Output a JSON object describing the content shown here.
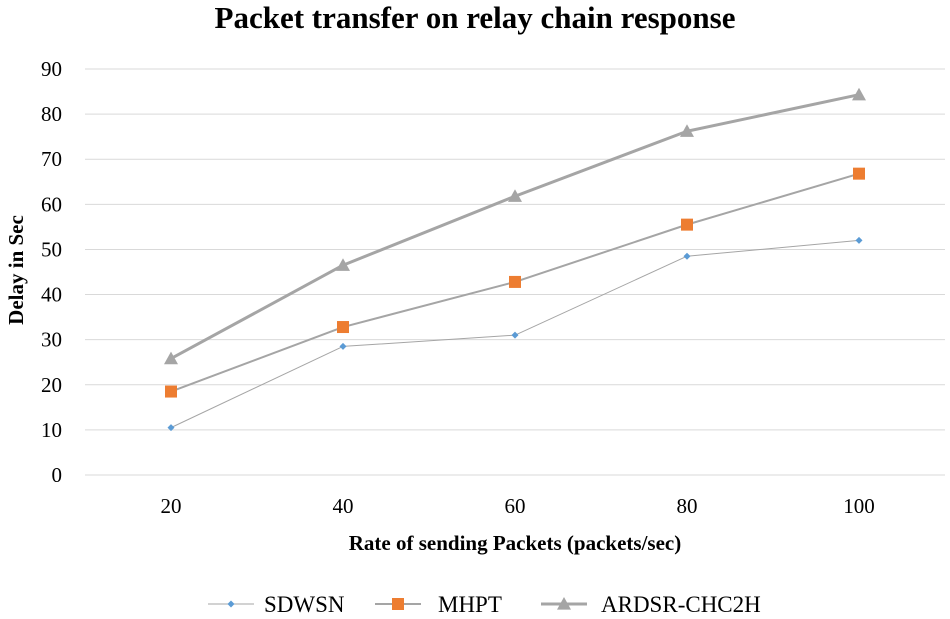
{
  "chart_data": {
    "type": "line",
    "title": "Packet transfer on relay chain response",
    "xlabel": "Rate of sending Packets (packets/sec)",
    "ylabel": "Delay in Sec",
    "categories": [
      "20",
      "40",
      "60",
      "80",
      "100"
    ],
    "x": [
      20,
      40,
      60,
      80,
      100
    ],
    "ylim": [
      0,
      90
    ],
    "yticks": [
      0,
      10,
      20,
      30,
      40,
      50,
      60,
      70,
      80,
      90
    ],
    "grid": true,
    "legend_position": "bottom",
    "series": [
      {
        "name": "SDWSN",
        "values": [
          10.5,
          28.5,
          31,
          48.5,
          52
        ],
        "color": "#5b9bd5",
        "line_color": "#a5a5a5",
        "marker": "diamond",
        "line_width": "thin"
      },
      {
        "name": "MHPT",
        "values": [
          18.5,
          32.8,
          42.8,
          55.5,
          66.8
        ],
        "color": "#ed7d31",
        "line_color": "#a5a5a5",
        "marker": "square",
        "line_width": "medium"
      },
      {
        "name": "ARDSR-CHC2H",
        "values": [
          25.8,
          46.5,
          61.8,
          76.2,
          84.3
        ],
        "color": "#a5a5a5",
        "line_color": "#a5a5a5",
        "marker": "triangle",
        "line_width": "thick"
      }
    ]
  }
}
